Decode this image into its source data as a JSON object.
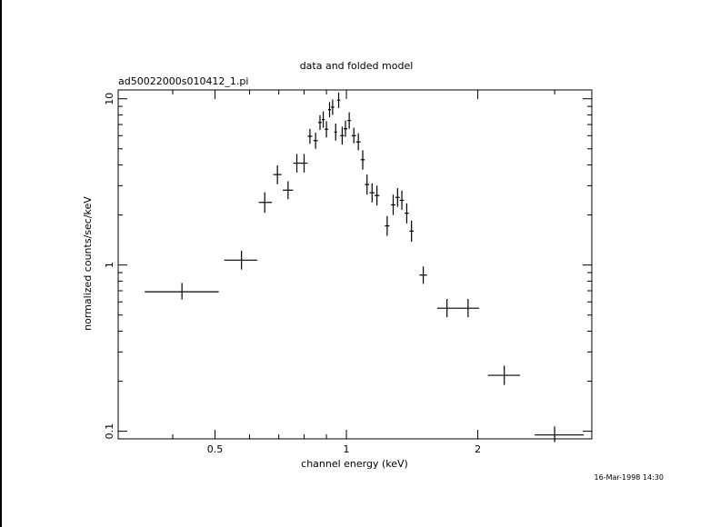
{
  "chart_data": {
    "type": "scatter",
    "title": "data and folded model",
    "subtitle": "ad50022000s010412_1.pi",
    "xlabel": "channel energy (keV)",
    "ylabel": "normalized counts/sec/keV",
    "footer": "16-Mar-1998 14:30",
    "x_scale": "log",
    "y_scale": "log",
    "xlim": [
      0.3,
      3.65
    ],
    "ylim": [
      0.09,
      11.3
    ],
    "x_ticks": [
      {
        "value": 0.5,
        "label": "0.5"
      },
      {
        "value": 1,
        "label": "1"
      },
      {
        "value": 2,
        "label": "2"
      }
    ],
    "y_ticks": [
      {
        "value": 0.1,
        "label": "0.1"
      },
      {
        "value": 1,
        "label": "1"
      },
      {
        "value": 10,
        "label": "10"
      }
    ],
    "grid": false,
    "legend": "none",
    "series": [
      {
        "points": [
          {
            "x": 0.42,
            "xlo": 0.345,
            "xhi": 0.51,
            "y": 0.69,
            "ylo": 0.62,
            "yhi": 0.78
          },
          {
            "x": 0.575,
            "xlo": 0.525,
            "xhi": 0.625,
            "y": 1.07,
            "ylo": 0.94,
            "yhi": 1.22
          },
          {
            "x": 0.65,
            "xlo": 0.63,
            "xhi": 0.675,
            "y": 2.38,
            "ylo": 2.06,
            "yhi": 2.74
          },
          {
            "x": 0.695,
            "xlo": 0.68,
            "xhi": 0.71,
            "y": 3.5,
            "ylo": 3.06,
            "yhi": 3.98
          },
          {
            "x": 0.735,
            "xlo": 0.715,
            "xhi": 0.755,
            "y": 2.82,
            "ylo": 2.49,
            "yhi": 3.19
          },
          {
            "x": 0.77,
            "xlo": 0.755,
            "xhi": 0.785,
            "y": 4.1,
            "ylo": 3.6,
            "yhi": 4.66
          },
          {
            "x": 0.8,
            "xlo": 0.785,
            "xhi": 0.815,
            "y": 4.1,
            "ylo": 3.6,
            "yhi": 4.66
          },
          {
            "x": 0.825,
            "xlo": 0.815,
            "xhi": 0.835,
            "y": 5.95,
            "ylo": 5.36,
            "yhi": 6.6
          },
          {
            "x": 0.85,
            "xlo": 0.84,
            "xhi": 0.86,
            "y": 5.6,
            "ylo": 5.0,
            "yhi": 6.25
          },
          {
            "x": 0.87,
            "xlo": 0.862,
            "xhi": 0.878,
            "y": 7.2,
            "ylo": 6.5,
            "yhi": 7.97
          },
          {
            "x": 0.885,
            "xlo": 0.878,
            "xhi": 0.892,
            "y": 7.5,
            "ylo": 6.7,
            "yhi": 8.4
          },
          {
            "x": 0.9,
            "xlo": 0.892,
            "xhi": 0.908,
            "y": 6.55,
            "ylo": 5.85,
            "yhi": 7.33
          },
          {
            "x": 0.915,
            "xlo": 0.908,
            "xhi": 0.922,
            "y": 8.6,
            "ylo": 7.75,
            "yhi": 9.55
          },
          {
            "x": 0.93,
            "xlo": 0.922,
            "xhi": 0.938,
            "y": 8.9,
            "ylo": 8.0,
            "yhi": 9.9
          },
          {
            "x": 0.945,
            "xlo": 0.938,
            "xhi": 0.952,
            "y": 6.3,
            "ylo": 5.6,
            "yhi": 7.1
          },
          {
            "x": 0.96,
            "xlo": 0.952,
            "xhi": 0.968,
            "y": 9.8,
            "ylo": 8.8,
            "yhi": 10.9
          },
          {
            "x": 0.978,
            "xlo": 0.968,
            "xhi": 0.988,
            "y": 6.0,
            "ylo": 5.3,
            "yhi": 6.8
          },
          {
            "x": 0.995,
            "xlo": 0.985,
            "xhi": 1.005,
            "y": 6.6,
            "ylo": 5.9,
            "yhi": 7.4
          },
          {
            "x": 1.015,
            "xlo": 1.005,
            "xhi": 1.025,
            "y": 7.4,
            "ylo": 6.6,
            "yhi": 8.3
          },
          {
            "x": 1.04,
            "xlo": 1.028,
            "xhi": 1.052,
            "y": 6.0,
            "ylo": 5.4,
            "yhi": 6.7
          },
          {
            "x": 1.065,
            "xlo": 1.052,
            "xhi": 1.078,
            "y": 5.5,
            "ylo": 4.9,
            "yhi": 6.2
          },
          {
            "x": 1.09,
            "xlo": 1.078,
            "xhi": 1.102,
            "y": 4.3,
            "ylo": 3.75,
            "yhi": 4.9
          },
          {
            "x": 1.115,
            "xlo": 1.102,
            "xhi": 1.128,
            "y": 3.05,
            "ylo": 2.65,
            "yhi": 3.5
          },
          {
            "x": 1.145,
            "xlo": 1.13,
            "xhi": 1.16,
            "y": 2.72,
            "ylo": 2.38,
            "yhi": 3.1
          },
          {
            "x": 1.175,
            "xlo": 1.16,
            "xhi": 1.19,
            "y": 2.62,
            "ylo": 2.28,
            "yhi": 3.0
          },
          {
            "x": 1.24,
            "xlo": 1.225,
            "xhi": 1.255,
            "y": 1.72,
            "ylo": 1.5,
            "yhi": 1.97
          },
          {
            "x": 1.28,
            "xlo": 1.265,
            "xhi": 1.295,
            "y": 2.3,
            "ylo": 2.0,
            "yhi": 2.65
          },
          {
            "x": 1.31,
            "xlo": 1.295,
            "xhi": 1.325,
            "y": 2.55,
            "ylo": 2.24,
            "yhi": 2.9
          },
          {
            "x": 1.34,
            "xlo": 1.325,
            "xhi": 1.355,
            "y": 2.45,
            "ylo": 2.15,
            "yhi": 2.8
          },
          {
            "x": 1.375,
            "xlo": 1.36,
            "xhi": 1.39,
            "y": 2.05,
            "ylo": 1.78,
            "yhi": 2.35
          },
          {
            "x": 1.41,
            "xlo": 1.395,
            "xhi": 1.425,
            "y": 1.6,
            "ylo": 1.38,
            "yhi": 1.85
          },
          {
            "x": 1.5,
            "xlo": 1.47,
            "xhi": 1.53,
            "y": 0.87,
            "ylo": 0.77,
            "yhi": 0.98
          },
          {
            "x": 1.7,
            "xlo": 1.615,
            "xhi": 1.785,
            "y": 0.55,
            "ylo": 0.485,
            "yhi": 0.625
          },
          {
            "x": 1.9,
            "xlo": 1.785,
            "xhi": 2.015,
            "y": 0.55,
            "ylo": 0.485,
            "yhi": 0.625
          },
          {
            "x": 2.3,
            "xlo": 2.11,
            "xhi": 2.5,
            "y": 0.217,
            "ylo": 0.19,
            "yhi": 0.248
          },
          {
            "x": 3.0,
            "xlo": 2.7,
            "xhi": 3.5,
            "y": 0.095,
            "ylo": 0.086,
            "yhi": 0.107
          }
        ]
      }
    ]
  }
}
